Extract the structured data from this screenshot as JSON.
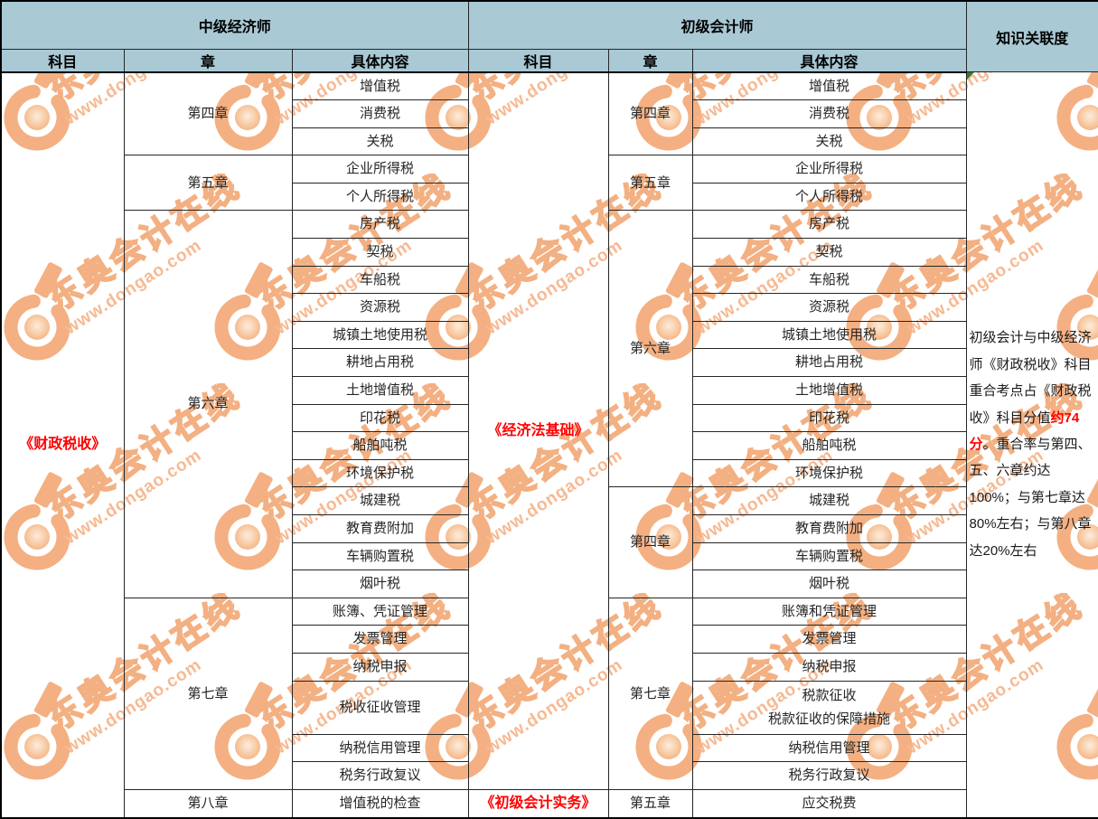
{
  "header": {
    "left_group": "中级经济师",
    "right_group": "初级会计师",
    "relevance": "知识关联度",
    "columns": [
      "科目",
      "章",
      "具体内容",
      "科目",
      "章",
      "具体内容"
    ]
  },
  "left": {
    "subject": "《财政税收》",
    "chapters": [
      {
        "name": "第四章",
        "items": [
          "增值税",
          "消费税",
          "关税"
        ]
      },
      {
        "name": "第五章",
        "items": [
          "企业所得税",
          "个人所得税"
        ]
      },
      {
        "name": "第六章",
        "items": [
          "房产税",
          "契税",
          "车船税",
          "资源税",
          "城镇土地使用税",
          "耕地占用税",
          "土地增值税",
          "印花税",
          "船舶吨税",
          "环境保护税",
          "城建税",
          "教育费附加",
          "车辆购置税",
          "烟叶税"
        ]
      },
      {
        "name": "第七章",
        "items": [
          "账簿、凭证管理",
          "发票管理",
          "纳税申报",
          "税收征收管理",
          "纳税信用管理",
          "税务行政复议"
        ]
      },
      {
        "name": "第八章",
        "items": [
          "增值税的检查"
        ]
      }
    ]
  },
  "right": {
    "subjects": [
      {
        "name": "《经济法基础》"
      },
      {
        "name": "《初级会计实务》"
      }
    ],
    "chapters": [
      {
        "name": "第四章",
        "items": [
          "增值税",
          "消费税",
          "关税"
        ]
      },
      {
        "name": "第五章",
        "items": [
          "企业所得税",
          "个人所得税"
        ]
      },
      {
        "name": "第六章",
        "items": [
          "房产税",
          "契税",
          "车船税",
          "资源税",
          "城镇土地使用税",
          "耕地占用税",
          "土地增值税",
          "印花税",
          "船舶吨税",
          "环境保护税"
        ]
      },
      {
        "name": "第四章",
        "items": [
          "城建税",
          "教育费附加",
          "车辆购置税",
          "烟叶税"
        ]
      },
      {
        "name": "第七章",
        "items": [
          "账簿和凭证管理",
          "发票管理",
          "纳税申报",
          [
            "税款征收",
            "税款征收的保障措施"
          ],
          "纳税信用管理",
          "税务行政复议"
        ]
      },
      {
        "name": "第五章",
        "items": [
          "应交税费"
        ]
      }
    ]
  },
  "relevance_note": {
    "before": "初级会计与中级经济师《财政税收》科目重合考点占《财政税收》科目分值",
    "highlight": "约74分",
    "after": "。重合率与第四、五、六章约达100%；与第七章达80%左右；与第八章达20%左右"
  },
  "watermark": {
    "brand": "东奥会计在线",
    "url": "www.dongao.com"
  },
  "colors": {
    "header_bg": "#a9c9d5",
    "accent_red": "#ff0000",
    "watermark_orange": "#f2a671",
    "marker_green": "#2e7d32",
    "border_dark": "#262626"
  }
}
